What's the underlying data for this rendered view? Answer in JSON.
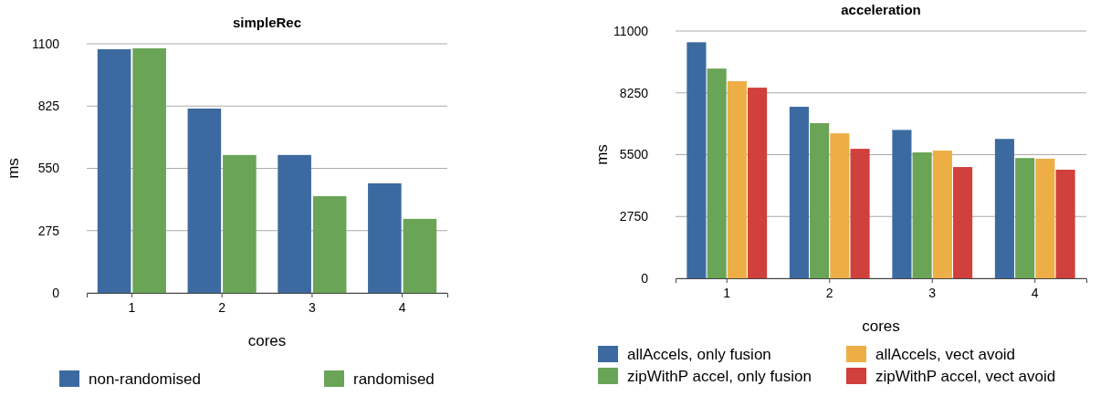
{
  "chart_data": [
    {
      "type": "bar",
      "title": "simpleRec",
      "xlabel": "cores",
      "ylabel": "ms",
      "categories": [
        "1",
        "2",
        "3",
        "4"
      ],
      "ylim": [
        0,
        1100
      ],
      "yticks": [
        0,
        275,
        550,
        825,
        1100
      ],
      "grid": "y",
      "legend": "bottom",
      "series": [
        {
          "name": "non-randomised",
          "color": "#3c6aa0",
          "values": [
            1076,
            814,
            609,
            484
          ]
        },
        {
          "name": "randomised",
          "color": "#6aa456",
          "values": [
            1080,
            609,
            427,
            327
          ]
        }
      ]
    },
    {
      "type": "bar",
      "title": "acceleration",
      "xlabel": "cores",
      "ylabel": "ms",
      "categories": [
        "1",
        "2",
        "3",
        "4"
      ],
      "ylim": [
        0,
        11000
      ],
      "yticks": [
        0,
        2750,
        5500,
        8250,
        11000
      ],
      "grid": "y",
      "legend": "bottom",
      "series": [
        {
          "name": "allAccels, only fusion",
          "color": "#3c6aa0",
          "values": [
            10500,
            7630,
            6600,
            6200
          ]
        },
        {
          "name": "zipWithP accel, only fusion",
          "color": "#6aa456",
          "values": [
            9330,
            6900,
            5600,
            5350
          ]
        },
        {
          "name": "allAccels, vect avoid",
          "color": "#eeae46",
          "values": [
            8770,
            6450,
            5680,
            5320
          ]
        },
        {
          "name": "zipWithP accel, vect avoid",
          "color": "#d0403c",
          "values": [
            8480,
            5760,
            4950,
            4830
          ]
        }
      ]
    }
  ]
}
